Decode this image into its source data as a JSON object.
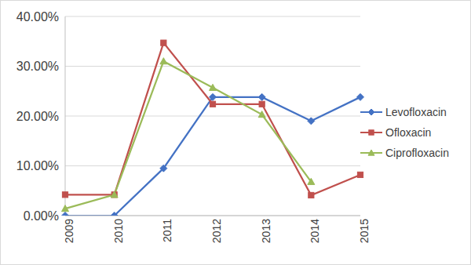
{
  "chart_data": {
    "type": "line",
    "categories": [
      "2009",
      "2010",
      "2011",
      "2012",
      "2013",
      "2014",
      "2015"
    ],
    "series": [
      {
        "name": "Levofloxacin",
        "color": "#4472c4",
        "marker": "diamond",
        "values": [
          0,
          0,
          9.5,
          23.8,
          23.8,
          19.0,
          23.8
        ]
      },
      {
        "name": "Ofloxacin",
        "color": "#c0504d",
        "marker": "square",
        "values": [
          4.2,
          4.2,
          34.7,
          22.4,
          22.4,
          4.1,
          8.2
        ]
      },
      {
        "name": "Ciprofloxacin",
        "color": "#9bbb59",
        "marker": "triangle",
        "values": [
          1.4,
          4.2,
          31.0,
          25.7,
          20.3,
          6.8,
          null
        ]
      }
    ],
    "ylim": [
      0,
      40
    ],
    "yticks": [
      {
        "value": 0,
        "label": "0.00%"
      },
      {
        "value": 10,
        "label": "10.00%"
      },
      {
        "value": 20,
        "label": "20.00%"
      },
      {
        "value": 30,
        "label": "30.00%"
      },
      {
        "value": 40,
        "label": "40.00%"
      }
    ],
    "grid": true,
    "legend": "right"
  }
}
